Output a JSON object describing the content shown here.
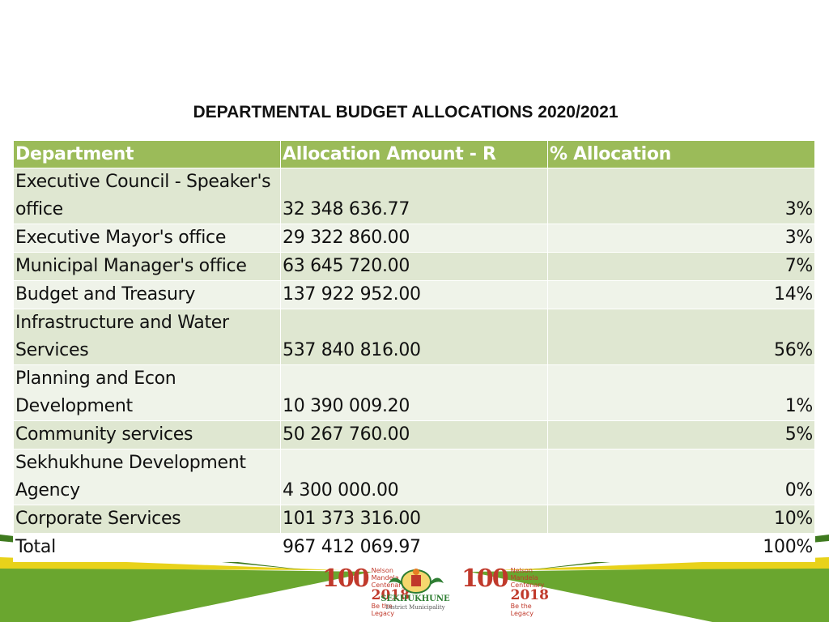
{
  "title": "DEPARTMENTAL BUDGET ALLOCATIONS 2020/2021",
  "table": {
    "headers": [
      "Department",
      "Allocation Amount - R",
      "% Allocation"
    ],
    "rows": [
      {
        "department": "Executive Council - Speaker's office",
        "amount": "32 348 636.77",
        "percent": "3%"
      },
      {
        "department": "Executive Mayor's office",
        "amount": "29 322 860.00",
        "percent": "3%"
      },
      {
        "department": "Municipal Manager's office",
        "amount": "63 645 720.00",
        "percent": "7%"
      },
      {
        "department": "Budget and Treasury",
        "amount": "137 922 952.00",
        "percent": "14%"
      },
      {
        "department": "Infrastructure and Water Services",
        "amount": "537 840 816.00",
        "percent": "56%"
      },
      {
        "department": "Planning and Econ Development",
        "amount": "10 390 009.20",
        "percent": "1%"
      },
      {
        "department": "Community services",
        "amount": "50 267 760.00",
        "percent": "5%"
      },
      {
        "department": "Sekhukhune Development Agency",
        "amount": "4 300 000.00",
        "percent": "0%"
      },
      {
        "department": "Corporate Services",
        "amount": "101 373 316.00",
        "percent": "10%"
      },
      {
        "department": "Total",
        "amount": "967 412 069.97",
        "percent": "100%"
      }
    ]
  },
  "footer": {
    "logo_left": {
      "number": "100",
      "caption": "Nelson Mandela Centenary",
      "year": "2018",
      "tagline": "Be the Legacy"
    },
    "crest": {
      "name": "SEKHUKHUNE",
      "subtitle": "District Municipality"
    },
    "logo_right": {
      "number": "100",
      "caption": "Nelson Mandela Centenary",
      "year": "2018",
      "tagline": "Be the Legacy"
    }
  },
  "colors": {
    "header_green": "#9bbb59",
    "row_dark": "#dfe7d1",
    "row_light": "#eff3e9",
    "band_green": "#6aa62f",
    "band_yellow": "#e8d21a"
  }
}
